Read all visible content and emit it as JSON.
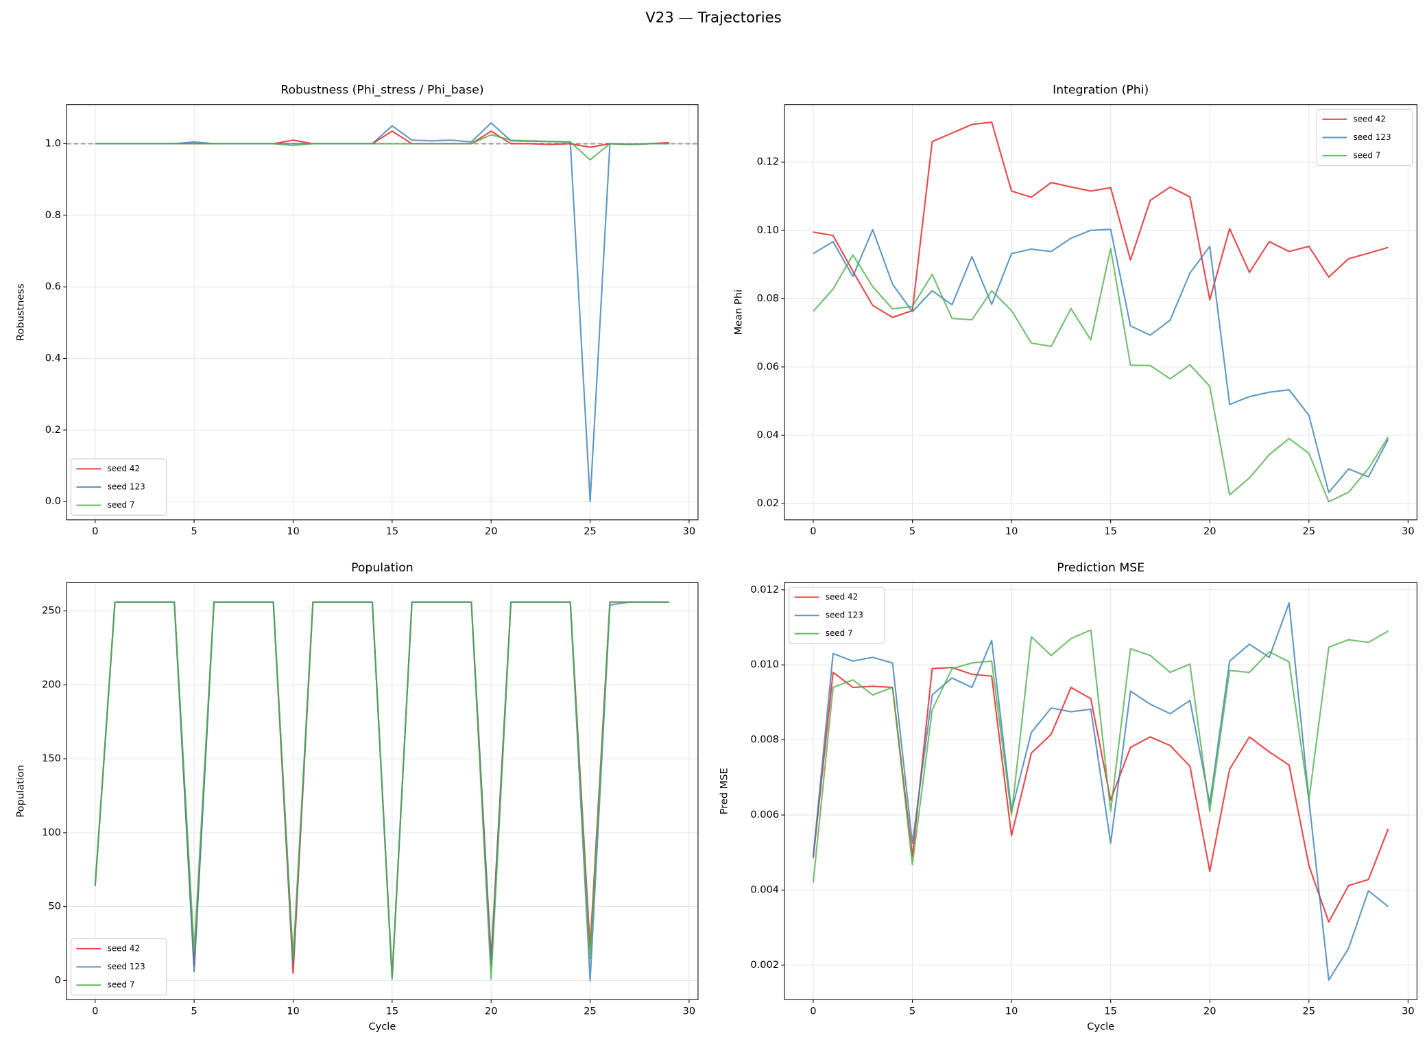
{
  "title": "V23 — Trajectories",
  "chart_data": [
    {
      "type": "line",
      "title": "Robustness (Phi_stress / Phi_base)",
      "y_label": "Robustness",
      "x": [
        0,
        1,
        2,
        3,
        4,
        5,
        6,
        7,
        8,
        9,
        10,
        11,
        12,
        13,
        14,
        15,
        16,
        17,
        18,
        19,
        20,
        21,
        22,
        23,
        24,
        25,
        26,
        27,
        28,
        29
      ],
      "xlim": [
        -1.45,
        30.45
      ],
      "xticks": [
        0,
        5,
        10,
        15,
        20,
        25,
        30
      ],
      "ylim": [
        -0.051,
        1.109
      ],
      "yticks": [
        {
          "value": 0,
          "label": "0.0"
        },
        {
          "value": 0.2,
          "label": "0.2"
        },
        {
          "value": 0.4,
          "label": "0.4"
        },
        {
          "value": 0.6,
          "label": "0.6"
        },
        {
          "value": 0.8,
          "label": "0.8"
        },
        {
          "value": 1,
          "label": "1.0"
        }
      ],
      "reference_line": 1,
      "grid": true,
      "legend": "lower left",
      "series": [
        {
          "name": "seed 42",
          "color": "#e41a1c",
          "values": [
            1,
            1,
            1,
            1,
            1,
            1,
            1,
            1,
            1,
            1,
            1.01,
            1,
            1,
            1,
            1,
            1.035,
            1,
            1,
            1,
            1,
            1.035,
            1,
            1,
            0.998,
            1,
            0.99,
            1,
            0.998,
            1,
            1.003
          ]
        },
        {
          "name": "seed 123",
          "color": "#377eb8",
          "values": [
            1,
            1,
            1,
            1,
            1,
            1.005,
            1,
            1,
            1,
            1,
            1,
            1,
            1,
            1,
            1,
            1.05,
            1.01,
            1.008,
            1.01,
            1.005,
            1.058,
            1.008,
            1.007,
            1.006,
            1.005,
            0,
            1,
            0.998,
            1,
            1
          ]
        },
        {
          "name": "seed 7",
          "color": "#4daf4a",
          "values": [
            1,
            1,
            1,
            1,
            1,
            1,
            1,
            1,
            1,
            1,
            0.995,
            1,
            1,
            1,
            1,
            1,
            1,
            1,
            1,
            1,
            1.025,
            1.01,
            1.008,
            1.006,
            1.005,
            0.955,
            1,
            0.998,
            1,
            1
          ]
        }
      ]
    },
    {
      "type": "line",
      "title": "Integration (Phi)",
      "y_label": "Mean Phi",
      "x": [
        0,
        1,
        2,
        3,
        4,
        5,
        6,
        7,
        8,
        9,
        10,
        11,
        12,
        13,
        14,
        15,
        16,
        17,
        18,
        19,
        20,
        21,
        22,
        23,
        24,
        25,
        26,
        27,
        28,
        29
      ],
      "xlim": [
        -1.45,
        30.45
      ],
      "xticks": [
        0,
        5,
        10,
        15,
        20,
        25,
        30
      ],
      "ylim": [
        0.0152,
        0.1368
      ],
      "yticks": [
        0.02,
        0.04,
        0.06,
        0.08,
        {
          "value": 0.1,
          "label": "0.10"
        },
        0.12
      ],
      "grid": true,
      "legend": "upper right",
      "series": [
        {
          "name": "seed 42",
          "color": "#e41a1c",
          "values": [
            0.0995,
            0.0985,
            0.088,
            0.078,
            0.0745,
            0.0765,
            0.126,
            0.1285,
            0.131,
            0.1317,
            0.1115,
            0.1097,
            0.114,
            0.1127,
            0.1115,
            0.1125,
            0.0913,
            0.1088,
            0.1127,
            0.1098,
            0.0797,
            0.1005,
            0.0877,
            0.0967,
            0.0938,
            0.0953,
            0.0863,
            0.0917,
            0.0933,
            0.095
          ]
        },
        {
          "name": "seed 123",
          "color": "#377eb8",
          "values": [
            0.0932,
            0.0967,
            0.0865,
            0.1002,
            0.0842,
            0.0762,
            0.0823,
            0.0782,
            0.0923,
            0.0783,
            0.0932,
            0.0945,
            0.0938,
            0.0977,
            0.1,
            0.1003,
            0.072,
            0.0693,
            0.0737,
            0.0875,
            0.0953,
            0.049,
            0.0513,
            0.0526,
            0.0533,
            0.0458,
            0.0232,
            0.0301,
            0.0278,
            0.0388
          ]
        },
        {
          "name": "seed 7",
          "color": "#4daf4a",
          "values": [
            0.0763,
            0.0828,
            0.0928,
            0.0835,
            0.077,
            0.0777,
            0.0871,
            0.0742,
            0.0738,
            0.0823,
            0.0765,
            0.067,
            0.066,
            0.0771,
            0.0679,
            0.0947,
            0.0605,
            0.0604,
            0.0565,
            0.0606,
            0.0543,
            0.0225,
            0.0275,
            0.0343,
            0.039,
            0.0347,
            0.0205,
            0.0233,
            0.0302,
            0.0395
          ]
        }
      ]
    },
    {
      "type": "line",
      "title": "Population",
      "y_label": "Population",
      "x_label": "Cycle",
      "x": [
        0,
        1,
        2,
        3,
        4,
        5,
        6,
        7,
        8,
        9,
        10,
        11,
        12,
        13,
        14,
        15,
        16,
        17,
        18,
        19,
        20,
        21,
        22,
        23,
        24,
        25,
        26,
        27,
        28,
        29
      ],
      "xlim": [
        -1.45,
        30.45
      ],
      "xticks": [
        0,
        5,
        10,
        15,
        20,
        25,
        30
      ],
      "ylim": [
        -12.9,
        269.1
      ],
      "yticks": [
        0,
        50,
        100,
        150,
        200,
        250
      ],
      "grid": true,
      "legend": "lower left",
      "series": [
        {
          "name": "seed 42",
          "color": "#e41a1c",
          "values": [
            64,
            256,
            256,
            256,
            256,
            10,
            256,
            256,
            256,
            256,
            5,
            256,
            256,
            256,
            256,
            2,
            256,
            256,
            256,
            256,
            15,
            256,
            256,
            256,
            256,
            22,
            256,
            256,
            256,
            256
          ]
        },
        {
          "name": "seed 123",
          "color": "#377eb8",
          "values": [
            64,
            256,
            256,
            256,
            256,
            6,
            256,
            256,
            256,
            256,
            12,
            256,
            256,
            256,
            256,
            2,
            256,
            256,
            256,
            256,
            10,
            256,
            256,
            256,
            256,
            0,
            254,
            256,
            256,
            256
          ]
        },
        {
          "name": "seed 7",
          "color": "#4daf4a",
          "values": [
            64,
            256,
            256,
            256,
            256,
            20,
            256,
            256,
            256,
            256,
            15,
            256,
            256,
            256,
            256,
            1,
            256,
            256,
            256,
            256,
            1,
            256,
            256,
            256,
            256,
            15,
            256,
            256,
            256,
            256
          ]
        }
      ]
    },
    {
      "type": "line",
      "title": "Prediction MSE",
      "y_label": "Pred MSE",
      "x_label": "Cycle",
      "x": [
        0,
        1,
        2,
        3,
        4,
        5,
        6,
        7,
        8,
        9,
        10,
        11,
        12,
        13,
        14,
        15,
        16,
        17,
        18,
        19,
        20,
        21,
        22,
        23,
        24,
        25,
        26,
        27,
        28,
        29
      ],
      "xlim": [
        -1.45,
        30.45
      ],
      "xticks": [
        0,
        5,
        10,
        15,
        20,
        25,
        30
      ],
      "ylim": [
        0.00108,
        0.01219
      ],
      "yticks": [
        0.002,
        0.004,
        0.006,
        0.008,
        {
          "value": 0.01,
          "label": "0.010"
        },
        0.012
      ],
      "grid": true,
      "legend": "upper left",
      "series": [
        {
          "name": "seed 42",
          "color": "#e41a1c",
          "values": [
            0.00485,
            0.0098,
            0.0094,
            0.00943,
            0.0094,
            0.0049,
            0.0099,
            0.00993,
            0.00975,
            0.0097,
            0.00545,
            0.00765,
            0.00815,
            0.0094,
            0.0091,
            0.0064,
            0.0078,
            0.00808,
            0.00785,
            0.0073,
            0.0045,
            0.00722,
            0.00808,
            0.00768,
            0.00733,
            0.00465,
            0.00315,
            0.00412,
            0.00428,
            0.00563
          ]
        },
        {
          "name": "seed 123",
          "color": "#377eb8",
          "values": [
            0.0049,
            0.0103,
            0.0101,
            0.0102,
            0.01005,
            0.00525,
            0.0092,
            0.00965,
            0.0094,
            0.01065,
            0.0061,
            0.0082,
            0.00885,
            0.00875,
            0.00882,
            0.00525,
            0.0093,
            0.00895,
            0.0087,
            0.00905,
            0.0063,
            0.0101,
            0.01055,
            0.0102,
            0.01165,
            0.0064,
            0.0016,
            0.00245,
            0.00398,
            0.00356
          ]
        },
        {
          "name": "seed 7",
          "color": "#4daf4a",
          "values": [
            0.0042,
            0.0094,
            0.0096,
            0.0092,
            0.0094,
            0.00468,
            0.0088,
            0.0099,
            0.01005,
            0.0101,
            0.006,
            0.01075,
            0.01025,
            0.0107,
            0.01093,
            0.0061,
            0.01043,
            0.01025,
            0.0098,
            0.01002,
            0.0061,
            0.00985,
            0.0098,
            0.01035,
            0.01008,
            0.0064,
            0.01047,
            0.01067,
            0.0106,
            0.0109
          ]
        }
      ]
    }
  ]
}
